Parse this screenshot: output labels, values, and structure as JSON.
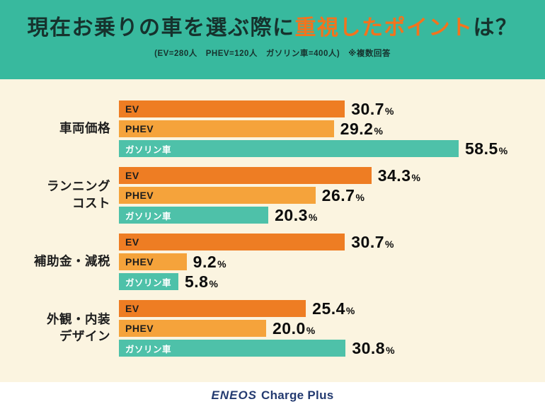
{
  "header": {
    "title_prefix": "現在お乗りの車を選ぶ際に",
    "title_highlight": "重視したポイント",
    "title_suffix": "は？",
    "subtitle": "(EV=280人　PHEV=120人　ガソリン車=400人)　※複数回答"
  },
  "chart_data": {
    "type": "bar",
    "orientation": "horizontal",
    "title": "現在お乗りの車を選ぶ際に重視したポイントは？",
    "note": "※複数回答",
    "sample_sizes": {
      "EV": 280,
      "PHEV": 120,
      "ガソリン車": 400
    },
    "series_labels": [
      "EV",
      "PHEV",
      "ガソリン車"
    ],
    "colors": [
      "#ee7d23",
      "#f5a33b",
      "#4ec1a9"
    ],
    "label_colors": [
      "#1d1d1d",
      "#1d1d1d",
      "#ffffff"
    ],
    "unit": "%",
    "xlim": [
      0,
      60
    ],
    "groups": [
      {
        "category": "車両価格",
        "category_lines": [
          "車両価格"
        ],
        "values": [
          30.7,
          29.2,
          58.5
        ]
      },
      {
        "category": "ランニングコスト",
        "category_lines": [
          "ランニング",
          "コスト"
        ],
        "values": [
          34.3,
          26.7,
          20.3
        ]
      },
      {
        "category": "補助金・減税",
        "category_lines": [
          "補助金・減税"
        ],
        "values": [
          30.7,
          9.2,
          5.8
        ]
      },
      {
        "category": "外観・内装デザイン",
        "category_lines": [
          "外観・内装",
          "デザイン"
        ],
        "values": [
          25.4,
          20.0,
          30.8
        ]
      }
    ]
  },
  "footer": {
    "brand_eneos": "ENEOS",
    "brand_service": "Charge Plus"
  }
}
